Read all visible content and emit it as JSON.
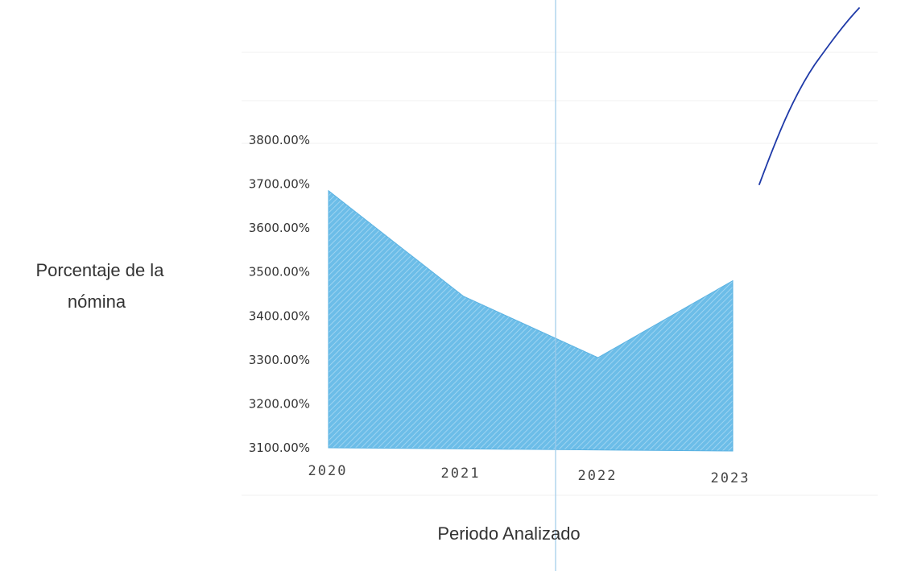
{
  "chart_data": {
    "type": "area",
    "x": [
      "2020",
      "2021",
      "2022",
      "2023"
    ],
    "series": [
      {
        "values": [
          36.85,
          34.45,
          33.05,
          34.8
        ]
      }
    ],
    "ylabel_lines": [
      "Porcentaje de la",
      "nómina"
    ],
    "xlabel": "Periodo Analizado",
    "y_ticks": [
      "3100.00%",
      "3200.00%",
      "3300.00%",
      "3400.00%",
      "3500.00%",
      "3600.00%",
      "3700.00%",
      "3800.00%"
    ],
    "y_tick_values": [
      31,
      32,
      33,
      34,
      35,
      36,
      37,
      38
    ],
    "ylim": [
      31,
      38
    ],
    "grid": false,
    "legend": "none",
    "colors": {
      "fill": "#6cbde8",
      "hatch": "#a9d9f3",
      "stroke": "#5ab2e2",
      "marker_line": "#9ecaea",
      "pen_stroke": "#1f3aa8"
    }
  }
}
